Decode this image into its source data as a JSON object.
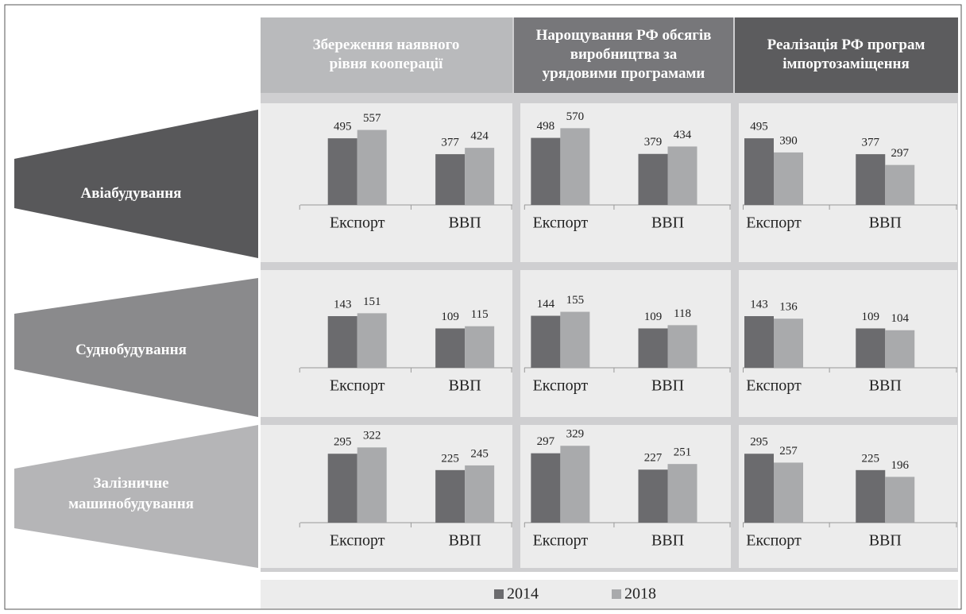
{
  "columns": [
    "Збереження наявного рівня кооперації",
    "Нарощування РФ обсягів виробництва за урядовими програмами",
    "Реалізація РФ програм імпортозаміщення"
  ],
  "rows": [
    "Авіабудування",
    "Суднобудування",
    "Залізничне машинобудування"
  ],
  "legend": [
    {
      "name": "2014",
      "color": "#6b6b6e"
    },
    {
      "name": "2018",
      "color": "#a9aaac"
    }
  ],
  "chart_data": [
    {
      "type": "bar",
      "categories": [
        "Експорт",
        "ВВП"
      ],
      "series": [
        {
          "values": [
            495,
            377
          ]
        },
        {
          "values": [
            557,
            424
          ]
        }
      ],
      "ylim": [
        0,
        590
      ]
    },
    {
      "type": "bar",
      "categories": [
        "Експорт",
        "ВВП"
      ],
      "series": [
        {
          "values": [
            498,
            379
          ]
        },
        {
          "values": [
            570,
            434
          ]
        }
      ],
      "ylim": [
        0,
        590
      ]
    },
    {
      "type": "bar",
      "categories": [
        "Експорт",
        "ВВП"
      ],
      "series": [
        {
          "values": [
            495,
            377
          ]
        },
        {
          "values": [
            390,
            297
          ]
        }
      ],
      "ylim": [
        0,
        590
      ]
    },
    {
      "type": "bar",
      "categories": [
        "Експорт",
        "ВВП"
      ],
      "series": [
        {
          "values": [
            143,
            109
          ]
        },
        {
          "values": [
            151,
            115
          ]
        }
      ],
      "ylim": [
        0,
        220
      ]
    },
    {
      "type": "bar",
      "categories": [
        "Експорт",
        "ВВП"
      ],
      "series": [
        {
          "values": [
            144,
            109
          ]
        },
        {
          "values": [
            155,
            118
          ]
        }
      ],
      "ylim": [
        0,
        220
      ]
    },
    {
      "type": "bar",
      "categories": [
        "Експорт",
        "ВВП"
      ],
      "series": [
        {
          "values": [
            143,
            109
          ]
        },
        {
          "values": [
            136,
            104
          ]
        }
      ],
      "ylim": [
        0,
        220
      ]
    },
    {
      "type": "bar",
      "categories": [
        "Експорт",
        "ВВП"
      ],
      "series": [
        {
          "values": [
            295,
            225
          ]
        },
        {
          "values": [
            322,
            245
          ]
        }
      ],
      "ylim": [
        0,
        340
      ]
    },
    {
      "type": "bar",
      "categories": [
        "Експорт",
        "ВВП"
      ],
      "series": [
        {
          "values": [
            297,
            227
          ]
        },
        {
          "values": [
            329,
            251
          ]
        }
      ],
      "ylim": [
        0,
        340
      ]
    },
    {
      "type": "bar",
      "categories": [
        "Експорт",
        "ВВП"
      ],
      "series": [
        {
          "values": [
            295,
            225
          ]
        },
        {
          "values": [
            257,
            196
          ]
        }
      ],
      "ylim": [
        0,
        340
      ]
    }
  ]
}
